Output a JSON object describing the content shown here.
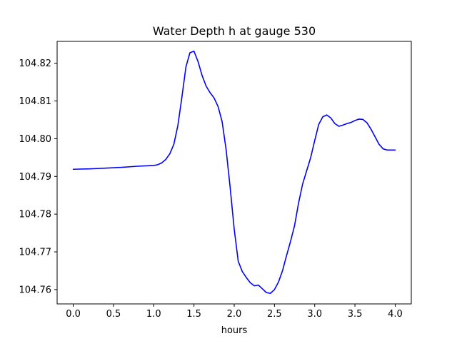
{
  "chart_data": {
    "type": "line",
    "title": "Water Depth h at gauge 530",
    "xlabel": "hours",
    "ylabel": "",
    "xlim": [
      -0.2,
      4.2
    ],
    "ylim": [
      104.7562,
      104.8258
    ],
    "xticks": [
      0.0,
      0.5,
      1.0,
      1.5,
      2.0,
      2.5,
      3.0,
      3.5,
      4.0
    ],
    "xtick_labels": [
      "0.0",
      "0.5",
      "1.0",
      "1.5",
      "2.0",
      "2.5",
      "3.0",
      "3.5",
      "4.0"
    ],
    "yticks": [
      104.76,
      104.77,
      104.78,
      104.79,
      104.8,
      104.81,
      104.82
    ],
    "ytick_labels": [
      "104.76",
      "104.77",
      "104.78",
      "104.79",
      "104.80",
      "104.81",
      "104.82"
    ],
    "grid": false,
    "series": [
      {
        "color": "#0000ff",
        "x": [
          0.0,
          0.2,
          0.4,
          0.6,
          0.8,
          1.0,
          1.05,
          1.1,
          1.15,
          1.2,
          1.25,
          1.3,
          1.35,
          1.4,
          1.45,
          1.5,
          1.55,
          1.6,
          1.65,
          1.7,
          1.75,
          1.8,
          1.85,
          1.9,
          1.95,
          2.0,
          2.05,
          2.1,
          2.15,
          2.2,
          2.25,
          2.3,
          2.35,
          2.4,
          2.45,
          2.5,
          2.55,
          2.6,
          2.65,
          2.7,
          2.75,
          2.8,
          2.85,
          2.9,
          2.95,
          3.0,
          3.05,
          3.1,
          3.15,
          3.2,
          3.25,
          3.3,
          3.35,
          3.4,
          3.45,
          3.5,
          3.55,
          3.6,
          3.65,
          3.7,
          3.75,
          3.8,
          3.85,
          3.9,
          3.95,
          4.0
        ],
        "y": [
          104.7919,
          104.792,
          104.7922,
          104.7924,
          104.7927,
          104.7929,
          104.7931,
          104.7936,
          104.7945,
          104.796,
          104.7985,
          104.8035,
          104.811,
          104.819,
          104.8228,
          104.8232,
          104.8205,
          104.8168,
          104.814,
          104.8122,
          104.8108,
          104.8085,
          104.8045,
          104.797,
          104.787,
          104.776,
          104.7675,
          104.7648,
          104.7632,
          104.7618,
          104.761,
          104.7612,
          104.7602,
          104.7592,
          104.759,
          104.76,
          104.762,
          104.765,
          104.769,
          104.7728,
          104.777,
          104.783,
          104.788,
          104.7915,
          104.795,
          104.7995,
          104.8038,
          104.8058,
          104.8063,
          104.8055,
          104.804,
          104.8033,
          104.8036,
          104.804,
          104.8043,
          104.8048,
          104.8052,
          104.8051,
          104.8042,
          104.8025,
          104.8005,
          104.7985,
          104.7973,
          104.797,
          104.797,
          104.797
        ]
      }
    ]
  }
}
